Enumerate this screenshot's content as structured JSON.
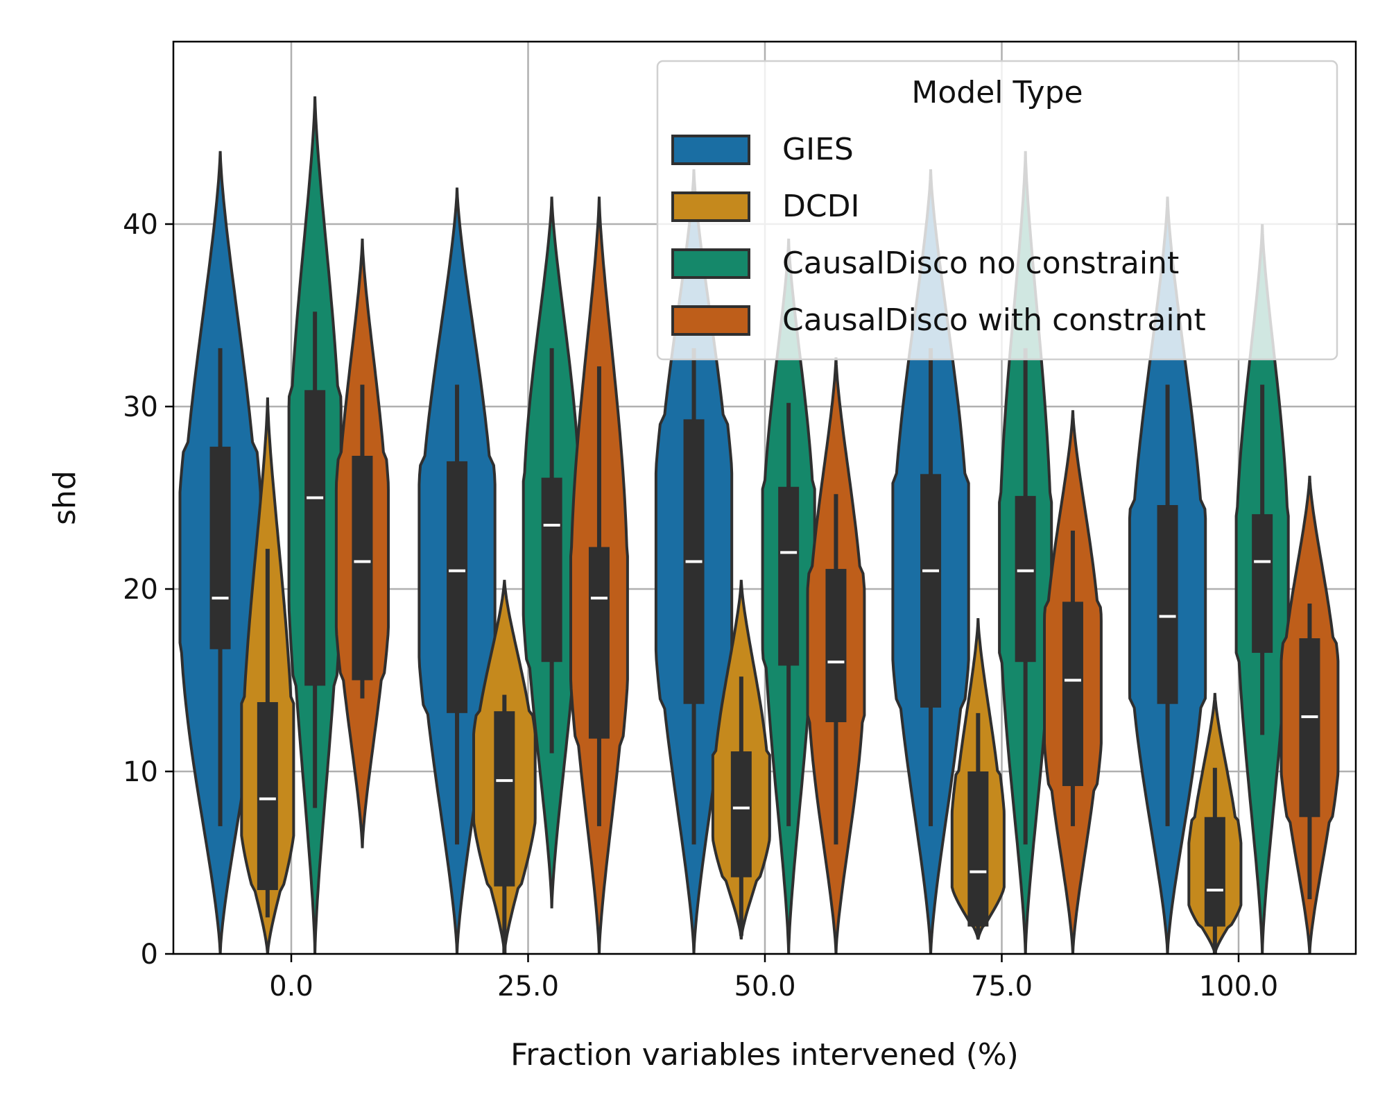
{
  "chart_data": {
    "type": "violin",
    "xlabel": "Fraction variables intervened (%)",
    "ylabel": "shd",
    "ylim": [
      0,
      50
    ],
    "yticks": [
      0,
      10,
      20,
      30,
      40
    ],
    "grid": true,
    "categories": [
      "0.0",
      "25.0",
      "50.0",
      "75.0",
      "100.0"
    ],
    "legend": {
      "title": "Model Type",
      "placement": "top-right"
    },
    "series": [
      {
        "name": "GIES",
        "color": "#1a6ea3",
        "stats": [
          {
            "min": 0,
            "max": 44,
            "q1": 16.7,
            "median": 19.5,
            "q3": 27.8,
            "whisker_low": 7,
            "whisker_high": 33.2,
            "max_width": 0.17
          },
          {
            "min": 0,
            "max": 42,
            "q1": 13.2,
            "median": 21,
            "q3": 27,
            "whisker_low": 6,
            "whisker_high": 31.2,
            "max_width": 0.16
          },
          {
            "min": 0,
            "max": 43,
            "q1": 13.7,
            "median": 21.5,
            "q3": 29.3,
            "whisker_low": 6,
            "whisker_high": 33.2,
            "max_width": 0.16
          },
          {
            "min": 0,
            "max": 43,
            "q1": 13.5,
            "median": 21,
            "q3": 26.3,
            "whisker_low": 7,
            "whisker_high": 33.2,
            "max_width": 0.16
          },
          {
            "min": 0,
            "max": 41.5,
            "q1": 13.7,
            "median": 18.5,
            "q3": 24.6,
            "whisker_low": 7,
            "whisker_high": 31.2,
            "max_width": 0.16
          }
        ]
      },
      {
        "name": "DCDI",
        "color": "#c5891d",
        "stats": [
          {
            "min": 0,
            "max": 30.5,
            "q1": 3.5,
            "median": 8.5,
            "q3": 13.8,
            "whisker_low": 2,
            "whisker_high": 22.2,
            "max_width": 0.11
          },
          {
            "min": 0,
            "max": 20.5,
            "q1": 3.7,
            "median": 9.5,
            "q3": 13.3,
            "whisker_low": 0,
            "whisker_high": 14.2,
            "max_width": 0.13
          },
          {
            "min": 0.8,
            "max": 20.5,
            "q1": 4.2,
            "median": 8,
            "q3": 11.1,
            "whisker_low": 1,
            "whisker_high": 15.2,
            "max_width": 0.12
          },
          {
            "min": 0.8,
            "max": 18.4,
            "q1": 1.5,
            "median": 4.5,
            "q3": 10,
            "whisker_low": 1,
            "whisker_high": 13.2,
            "max_width": 0.11
          },
          {
            "min": 0,
            "max": 14.3,
            "q1": 1.5,
            "median": 3.5,
            "q3": 7.5,
            "whisker_low": 0,
            "whisker_high": 10.2,
            "max_width": 0.11
          }
        ]
      },
      {
        "name": "CausalDisco no constraint",
        "color": "#15886a",
        "stats": [
          {
            "min": 0,
            "max": 47,
            "q1": 14.7,
            "median": 25,
            "q3": 30.9,
            "whisker_low": 8,
            "whisker_high": 35.2,
            "max_width": 0.11
          },
          {
            "min": 2.5,
            "max": 41.5,
            "q1": 16,
            "median": 23.5,
            "q3": 26.1,
            "whisker_low": 11,
            "whisker_high": 33.2,
            "max_width": 0.12
          },
          {
            "min": 0,
            "max": 39.2,
            "q1": 15.8,
            "median": 22,
            "q3": 25.6,
            "whisker_low": 7,
            "whisker_high": 30.2,
            "max_width": 0.11
          },
          {
            "min": 0,
            "max": 44,
            "q1": 16,
            "median": 21,
            "q3": 25.1,
            "whisker_low": 6,
            "whisker_high": 33.2,
            "max_width": 0.11
          },
          {
            "min": 0,
            "max": 40,
            "q1": 16.5,
            "median": 21.5,
            "q3": 24.1,
            "whisker_low": 12,
            "whisker_high": 31.2,
            "max_width": 0.11
          }
        ]
      },
      {
        "name": "CausalDisco with constraint",
        "color": "#be5e1a",
        "stats": [
          {
            "min": 5.8,
            "max": 39.2,
            "q1": 15,
            "median": 21.5,
            "q3": 27.3,
            "whisker_low": 14,
            "whisker_high": 31.2,
            "max_width": 0.11
          },
          {
            "min": 0,
            "max": 41.5,
            "q1": 11.8,
            "median": 19.5,
            "q3": 22.3,
            "whisker_low": 7,
            "whisker_high": 32.2,
            "max_width": 0.12
          },
          {
            "min": 0,
            "max": 32.7,
            "q1": 12.7,
            "median": 16,
            "q3": 21.1,
            "whisker_low": 6,
            "whisker_high": 25.2,
            "max_width": 0.12
          },
          {
            "min": 0,
            "max": 29.8,
            "q1": 9.2,
            "median": 15,
            "q3": 19.3,
            "whisker_low": 7,
            "whisker_high": 23.2,
            "max_width": 0.12
          },
          {
            "min": 0,
            "max": 26.2,
            "q1": 7.5,
            "median": 13,
            "q3": 17.3,
            "whisker_low": 3,
            "whisker_high": 19.2,
            "max_width": 0.12
          }
        ]
      }
    ]
  }
}
